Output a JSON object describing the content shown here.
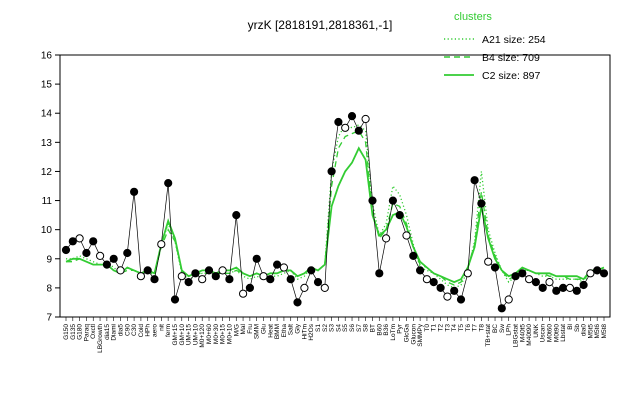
{
  "chart_data": {
    "type": "line",
    "title": "yrzK [2818191,2818361,-1]",
    "xlabel": "",
    "ylabel": "",
    "ylim": [
      7,
      16
    ],
    "yticks": [
      7,
      8,
      9,
      10,
      11,
      12,
      13,
      14,
      15,
      16
    ],
    "grid": false,
    "legend": {
      "title": "clusters",
      "placement": "top-right",
      "entries": [
        {
          "label": "A21 size: 254",
          "style": "dotted"
        },
        {
          "label": "B4 size: 709",
          "style": "dashed"
        },
        {
          "label": "C2 size: 897",
          "style": "solid"
        }
      ]
    },
    "colors": {
      "cluster": "#33cc33",
      "points": "#000000"
    },
    "x_tick_labels": [
      "G150",
      "G135",
      "G180",
      "Paraq",
      "Oxctl",
      "LBGrowth",
      "dia15",
      "Diami",
      "dia5",
      "C90",
      "C30",
      "Cold",
      "HPh",
      "aero",
      "nit",
      "ferm",
      "GM+15",
      "GM+10",
      "UM+15",
      "UM+10",
      "M0+120",
      "M0+60",
      "M0+30",
      "M0+15",
      "M0+10",
      "M/G",
      "Mal",
      "Fru",
      "SMM",
      "Glu",
      "Heat",
      "BMM",
      "Etha",
      "Salt",
      "Gly",
      "HiTm",
      "H2Os",
      "S1",
      "S2",
      "S3",
      "S4",
      "S5",
      "S6",
      "S7",
      "S8",
      "BT",
      "B60",
      "B36",
      "LoTm",
      "Pyr",
      "GlcGa",
      "Glucon",
      "SMMPy",
      "T0",
      "T1",
      "T2",
      "T3",
      "T4",
      "T5",
      "T6",
      "T7",
      "T8",
      "TB+stat",
      "BC",
      "Sw",
      "LPh",
      "LBGstat",
      "M40t5",
      "M40t90",
      "UNK",
      "Uscan",
      "M0t60",
      "M0t90",
      "Lbstat",
      "Bl",
      "Sb",
      "dia0",
      "M5t5",
      "M5t6",
      "M5t8"
    ],
    "series": [
      {
        "name": "A21 size: 254",
        "values": [
          9.0,
          9.0,
          9.1,
          9.0,
          8.9,
          8.8,
          8.9,
          8.7,
          8.5,
          8.7,
          8.6,
          8.5,
          8.6,
          8.4,
          9.5,
          10.2,
          9.6,
          8.5,
          8.3,
          8.4,
          8.5,
          8.5,
          8.4,
          8.5,
          8.5,
          8.6,
          8.4,
          8.3,
          8.4,
          8.3,
          8.4,
          8.4,
          8.5,
          8.6,
          8.3,
          8.4,
          8.7,
          8.6,
          8.8,
          12.0,
          13.2,
          13.6,
          13.5,
          13.6,
          13.4,
          10.9,
          9.8,
          10.2,
          11.5,
          11.2,
          10.5,
          9.5,
          8.7,
          8.6,
          8.5,
          8.3,
          8.1,
          8.0,
          8.1,
          8.6,
          9.6,
          12.0,
          10.0,
          9.2,
          8.6,
          8.2,
          8.4,
          8.6,
          8.6,
          8.5,
          8.4,
          8.4,
          8.3,
          8.3,
          8.3,
          8.3,
          8.2,
          8.5,
          8.6,
          8.6
        ]
      },
      {
        "name": "B4 size: 709",
        "values": [
          8.9,
          8.9,
          9.0,
          8.9,
          8.8,
          8.8,
          8.8,
          8.6,
          8.5,
          8.6,
          8.6,
          8.5,
          8.6,
          8.5,
          9.4,
          10.0,
          9.6,
          8.6,
          8.4,
          8.5,
          8.5,
          8.5,
          8.5,
          8.5,
          8.5,
          8.6,
          8.5,
          8.4,
          8.5,
          8.4,
          8.5,
          8.5,
          8.6,
          8.6,
          8.4,
          8.5,
          8.7,
          8.6,
          8.8,
          11.5,
          12.8,
          13.2,
          13.3,
          13.4,
          13.0,
          10.6,
          9.7,
          10.0,
          10.9,
          10.8,
          10.2,
          9.4,
          8.8,
          8.7,
          8.5,
          8.4,
          8.2,
          8.1,
          8.2,
          8.7,
          9.5,
          11.3,
          9.8,
          9.1,
          8.6,
          8.3,
          8.4,
          8.6,
          8.6,
          8.5,
          8.5,
          8.4,
          8.4,
          8.4,
          8.3,
          8.3,
          8.3,
          8.5,
          8.6,
          8.6
        ]
      },
      {
        "name": "C2 size: 897",
        "values": [
          8.9,
          9.0,
          9.0,
          8.9,
          8.8,
          8.8,
          8.8,
          8.6,
          8.5,
          8.7,
          8.6,
          8.5,
          8.6,
          8.5,
          9.5,
          10.3,
          9.7,
          8.6,
          8.4,
          8.5,
          8.6,
          8.6,
          8.5,
          8.6,
          8.6,
          8.7,
          8.5,
          8.4,
          8.5,
          8.4,
          8.5,
          8.5,
          8.6,
          8.6,
          8.4,
          8.5,
          8.7,
          8.6,
          8.8,
          10.8,
          11.5,
          12.0,
          12.3,
          12.8,
          12.4,
          10.5,
          9.8,
          10.0,
          10.5,
          10.6,
          10.1,
          9.4,
          8.9,
          8.7,
          8.5,
          8.4,
          8.3,
          8.2,
          8.3,
          8.7,
          9.4,
          10.8,
          9.7,
          9.0,
          8.6,
          8.4,
          8.5,
          8.7,
          8.6,
          8.5,
          8.5,
          8.5,
          8.4,
          8.4,
          8.4,
          8.4,
          8.3,
          8.6,
          8.6,
          8.7
        ]
      }
    ],
    "points": {
      "name": "yrzK",
      "values": [
        9.3,
        9.6,
        9.7,
        9.2,
        9.6,
        9.1,
        8.8,
        9.0,
        8.6,
        9.2,
        11.3,
        8.4,
        8.6,
        8.3,
        9.5,
        11.6,
        7.6,
        8.4,
        8.2,
        8.5,
        8.3,
        8.6,
        8.4,
        8.6,
        8.3,
        10.5,
        7.8,
        8.0,
        9.0,
        8.4,
        8.3,
        8.8,
        8.7,
        8.3,
        7.5,
        8.0,
        8.6,
        8.2,
        8.0,
        12.0,
        13.7,
        13.5,
        13.9,
        13.4,
        13.8,
        11.0,
        8.5,
        9.7,
        11.0,
        10.5,
        9.8,
        9.1,
        8.6,
        8.3,
        8.2,
        8.0,
        7.7,
        7.9,
        7.6,
        8.5,
        11.7,
        10.9,
        8.9,
        8.7,
        7.3,
        7.6,
        8.4,
        8.5,
        8.3,
        8.2,
        8.0,
        8.2,
        7.9,
        8.0,
        8.0,
        7.9,
        8.1,
        8.5,
        8.6,
        8.5
      ]
    }
  }
}
